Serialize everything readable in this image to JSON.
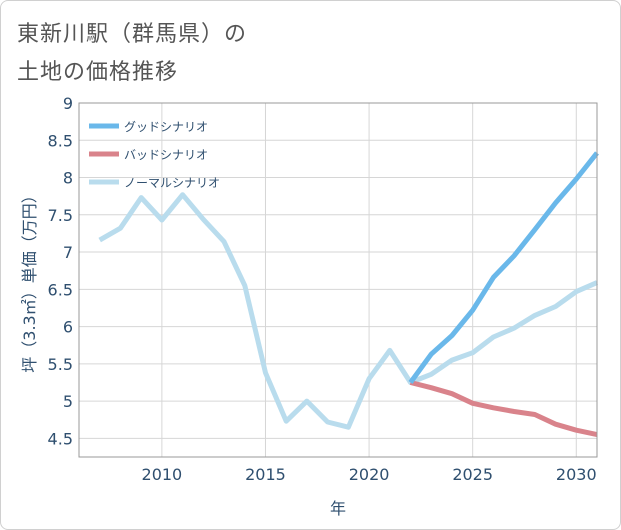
{
  "title_line1": "東新川駅（群馬県）の",
  "title_line2": "土地の価格推移",
  "chart_data": {
    "type": "line",
    "xlabel": "年",
    "ylabel": "坪（3.3㎡）単価（万円）",
    "xlim": [
      2006,
      2031
    ],
    "ylim": [
      4.25,
      9
    ],
    "x_ticks": [
      2010,
      2015,
      2020,
      2025,
      2030
    ],
    "y_ticks": [
      4.5,
      5,
      5.5,
      6,
      6.5,
      7,
      7.5,
      8,
      8.5,
      9
    ],
    "x_tick_labels": [
      "2010",
      "2015",
      "2020",
      "2025",
      "2030"
    ],
    "y_tick_labels": [
      "4.5",
      "5",
      "5.5",
      "6",
      "6.5",
      "7",
      "7.5",
      "8",
      "8.5",
      "9"
    ],
    "grid": true,
    "legend_position": "top-left",
    "series": [
      {
        "name": "グッドシナリオ",
        "color": "#6ab8ea",
        "x": [
          2022,
          2023,
          2024,
          2025,
          2026,
          2027,
          2028,
          2029,
          2030,
          2031
        ],
        "y": [
          5.25,
          5.63,
          5.88,
          6.22,
          6.66,
          6.95,
          7.3,
          7.66,
          7.98,
          8.33
        ]
      },
      {
        "name": "バッドシナリオ",
        "color": "#d9838b",
        "x": [
          2022,
          2023,
          2024,
          2025,
          2026,
          2027,
          2028,
          2029,
          2030,
          2031
        ],
        "y": [
          5.25,
          5.18,
          5.1,
          4.97,
          4.91,
          4.86,
          4.82,
          4.69,
          4.61,
          4.55
        ]
      },
      {
        "name": "ノーマルシナリオ",
        "color": "#b9dced",
        "x": [
          2007,
          2008,
          2009,
          2010,
          2011,
          2012,
          2013,
          2014,
          2015,
          2016,
          2017,
          2018,
          2019,
          2020,
          2021,
          2022,
          2023,
          2024,
          2025,
          2026,
          2027,
          2028,
          2029,
          2030,
          2031
        ],
        "y": [
          7.16,
          7.32,
          7.73,
          7.43,
          7.77,
          7.44,
          7.14,
          6.55,
          5.38,
          4.73,
          5.0,
          4.72,
          4.65,
          5.3,
          5.68,
          5.25,
          5.36,
          5.55,
          5.65,
          5.86,
          5.98,
          6.15,
          6.27,
          6.47,
          6.59
        ]
      }
    ]
  }
}
